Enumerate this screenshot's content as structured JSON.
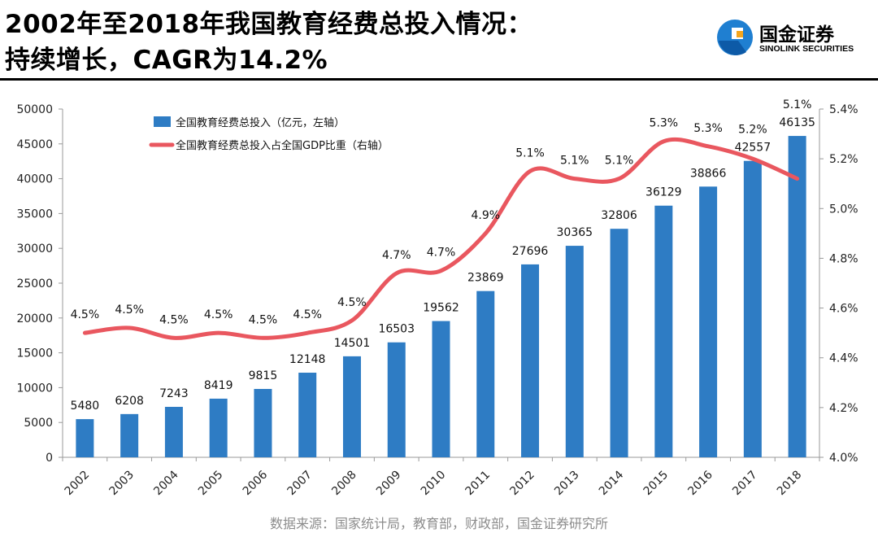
{
  "header": {
    "title_line1": "2002年至2018年我国教育经费总投入情况：",
    "title_line2": "持续增长，CAGR为14.2%",
    "logo_cn": "国金证券",
    "logo_en": "SINOLINK SECURITIES"
  },
  "footer": {
    "source": "数据来源：国家统计局，教育部，财政部，国金证券研究所"
  },
  "colors": {
    "bar": "#2e7cc4",
    "line": "#e9575f",
    "axis": "#999999"
  },
  "chart_data": {
    "type": "bar+line",
    "categories": [
      "2002",
      "2003",
      "2004",
      "2005",
      "2006",
      "2007",
      "2008",
      "2009",
      "2010",
      "2011",
      "2012",
      "2013",
      "2014",
      "2015",
      "2016",
      "2017",
      "2018"
    ],
    "series": [
      {
        "name": "全国教育经费总投入（亿元，左轴）",
        "type": "bar",
        "axis": "left",
        "values": [
          5480,
          6208,
          7243,
          8419,
          9815,
          12148,
          14501,
          16503,
          19562,
          23869,
          27696,
          30365,
          32806,
          36129,
          38866,
          42557,
          46135
        ],
        "labels": [
          "5480",
          "6208",
          "7243",
          "8419",
          "9815",
          "12148",
          "14501",
          "16503",
          "19562",
          "23869",
          "27696",
          "30365",
          "32806",
          "36129",
          "38866",
          "42557",
          "46135"
        ]
      },
      {
        "name": "全国教育经费总投入占全国GDP比重（右轴）",
        "type": "line",
        "axis": "right",
        "values": [
          4.5,
          4.52,
          4.48,
          4.5,
          4.48,
          4.5,
          4.55,
          4.74,
          4.75,
          4.9,
          5.15,
          5.12,
          5.12,
          5.27,
          5.25,
          5.2,
          5.12
        ],
        "labels": [
          "4.5%",
          "4.5%",
          "4.5%",
          "4.5%",
          "4.5%",
          "4.5%",
          "4.5%",
          "4.7%",
          "4.7%",
          "4.9%",
          "5.1%",
          "5.1%",
          "5.1%",
          "5.3%",
          "5.3%",
          "5.2%",
          "5.1%"
        ]
      }
    ],
    "y_left": {
      "min": 0,
      "max": 50000,
      "ticks": [
        "0",
        "5000",
        "10000",
        "15000",
        "20000",
        "25000",
        "30000",
        "35000",
        "40000",
        "45000",
        "50000"
      ]
    },
    "y_right": {
      "min": 4.0,
      "max": 5.4,
      "ticks": [
        "4.0%",
        "4.2%",
        "4.4%",
        "4.6%",
        "4.8%",
        "5.0%",
        "5.2%",
        "5.4%"
      ]
    },
    "legend_position": "top-left",
    "grid": false
  }
}
